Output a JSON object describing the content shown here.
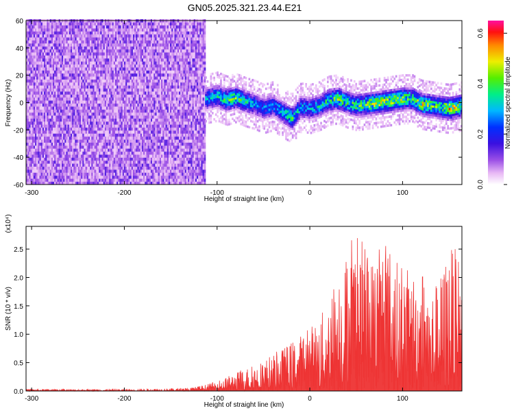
{
  "title": "GN05.2025.321.23.44.E21",
  "chart_data": [
    {
      "type": "heatmap",
      "name": "spectrogram",
      "xlabel": "Height of straight line (km)",
      "ylabel": "Frequency (Hz)",
      "xlim": [
        -306,
        164
      ],
      "ylim": [
        -60,
        60
      ],
      "x_ticks": [
        "-300",
        "-200",
        "-100",
        "0",
        "100"
      ],
      "y_ticks": [
        "60",
        "40",
        "20",
        "0",
        "-20",
        "-40",
        "-60"
      ],
      "colorbar": {
        "label": "Normalized spectral amplitude",
        "range": [
          0,
          0.65
        ],
        "ticks": [
          "0.0",
          "0.2",
          "0.4",
          "0.6"
        ]
      },
      "noise_region_x": [
        -306,
        -113
      ],
      "noise_level": 0.08,
      "signal_band": {
        "x": [
          -113,
          -100,
          -90,
          -80,
          -70,
          -60,
          -50,
          -40,
          -30,
          -20,
          -10,
          0,
          10,
          20,
          30,
          40,
          50,
          60,
          70,
          80,
          90,
          100,
          110,
          120,
          130,
          140,
          150,
          164
        ],
        "center_hz": [
          2,
          4,
          1,
          3,
          0,
          -2,
          -5,
          -3,
          -8,
          -12,
          -4,
          -5,
          -3,
          1,
          2,
          -1,
          -3,
          -2,
          -1,
          0,
          1,
          2,
          2,
          -2,
          -3,
          -4,
          -5,
          -3
        ],
        "peak_amplitude": [
          0.3,
          0.35,
          0.4,
          0.42,
          0.35,
          0.3,
          0.28,
          0.3,
          0.35,
          0.4,
          0.3,
          0.32,
          0.35,
          0.38,
          0.45,
          0.4,
          0.42,
          0.45,
          0.5,
          0.45,
          0.48,
          0.45,
          0.4,
          0.5,
          0.45,
          0.42,
          0.55,
          0.45
        ]
      }
    },
    {
      "type": "line",
      "name": "snr",
      "xlabel": "Height of straight line (km)",
      "ylabel": "SNR (10 * v/v)",
      "y_multiplier": "(x10⁴)",
      "xlim": [
        -306,
        164
      ],
      "ylim": [
        0,
        2.9
      ],
      "x_ticks": [
        "-300",
        "-200",
        "-100",
        "0",
        "100"
      ],
      "y_ticks": [
        "0.0",
        "0.5",
        "1.0",
        "1.5",
        "2.0",
        "2.5"
      ],
      "color": "#ee3333",
      "envelope": {
        "x": [
          -306,
          -200,
          -130,
          -110,
          -90,
          -70,
          -50,
          -30,
          -10,
          10,
          20,
          30,
          40,
          50,
          60,
          70,
          80,
          90,
          100,
          110,
          120,
          130,
          140,
          150,
          164
        ],
        "max": [
          0.03,
          0.03,
          0.05,
          0.12,
          0.25,
          0.4,
          0.55,
          0.75,
          1.0,
          1.3,
          1.6,
          2.2,
          2.5,
          2.9,
          2.5,
          2.4,
          2.9,
          2.4,
          2.2,
          2.1,
          2.3,
          1.8,
          2.0,
          2.6,
          2.4
        ]
      }
    }
  ]
}
